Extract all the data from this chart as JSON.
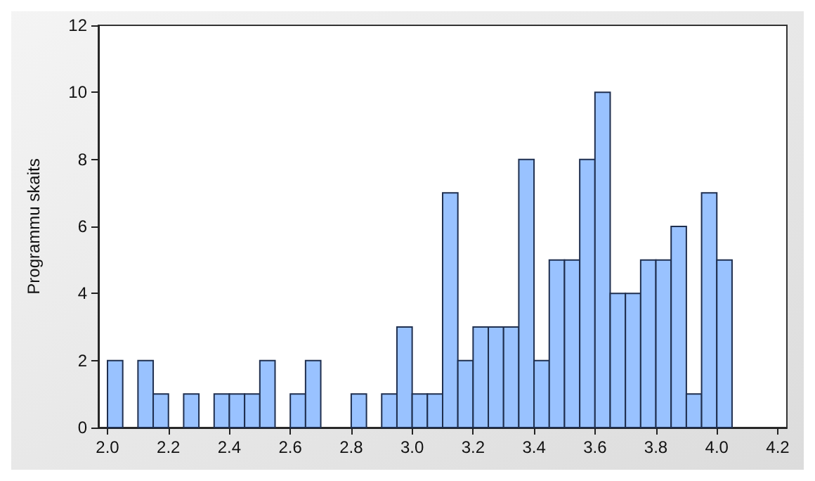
{
  "chart_data": {
    "type": "histogram",
    "ylabel": "Programmu skaits",
    "bins": [
      2.0,
      2.05,
      2.1,
      2.15,
      2.2,
      2.25,
      2.3,
      2.35,
      2.4,
      2.45,
      2.5,
      2.55,
      2.6,
      2.65,
      2.7,
      2.75,
      2.8,
      2.85,
      2.9,
      2.95,
      3.0,
      3.05,
      3.1,
      3.15,
      3.2,
      3.25,
      3.3,
      3.35,
      3.4,
      3.45,
      3.5,
      3.55,
      3.6,
      3.65,
      3.7,
      3.75,
      3.8,
      3.85,
      3.9,
      3.95,
      4.0,
      4.05
    ],
    "values": [
      2,
      0,
      2,
      1,
      0,
      1,
      0,
      1,
      1,
      1,
      2,
      0,
      1,
      2,
      0,
      0,
      1,
      0,
      1,
      3,
      1,
      1,
      7,
      2,
      3,
      3,
      3,
      8,
      2,
      5,
      5,
      8,
      10,
      4,
      4,
      5,
      5,
      6,
      1,
      7,
      5
    ],
    "color": "#99c2ff",
    "xlim": [
      1.97,
      4.23
    ],
    "xticks": [
      {
        "value": 2,
        "label": "2.0"
      },
      {
        "value": 2.2,
        "label": "2.2"
      },
      {
        "value": 2.4,
        "label": "2.4"
      },
      {
        "value": 2.6,
        "label": "2.6"
      },
      {
        "value": 2.8,
        "label": "2.8"
      },
      {
        "value": 3,
        "label": "3.0"
      },
      {
        "value": 3.2,
        "label": "3.2"
      },
      {
        "value": 3.4,
        "label": "3.4"
      },
      {
        "value": 3.6,
        "label": "3.6"
      },
      {
        "value": 3.8,
        "label": "3.8"
      },
      {
        "value": 4,
        "label": "4.0"
      },
      {
        "value": 4.2,
        "label": "4.2"
      }
    ],
    "ylim": [
      0,
      12
    ],
    "yticks": [
      0,
      2,
      4,
      6,
      8,
      10,
      12
    ],
    "grid": false
  }
}
